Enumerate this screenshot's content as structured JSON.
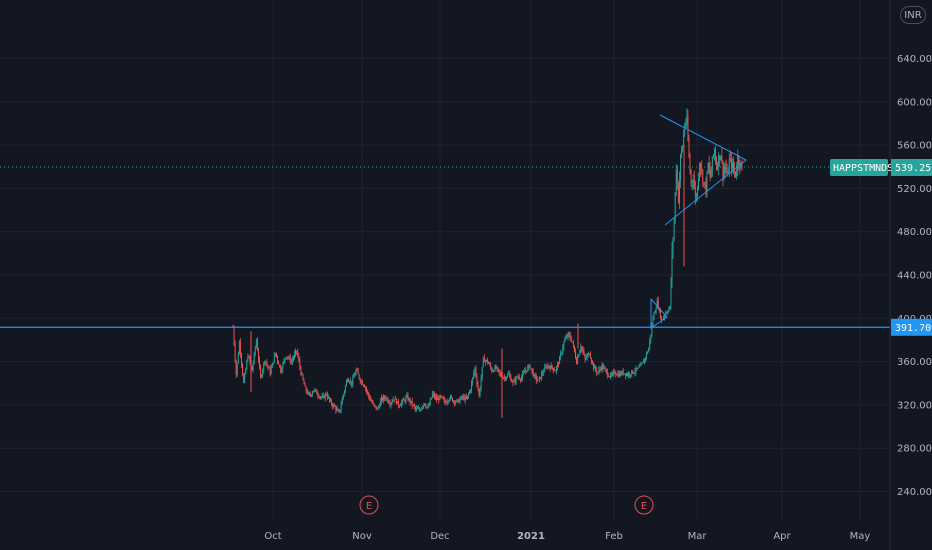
{
  "currency_label": "INR",
  "chart_data": {
    "type": "candlestick",
    "symbol": "HAPPSTMNDS",
    "last_price": "539.25",
    "support_level": "391.70",
    "support_value": 391.7,
    "ylim": [
      220,
      670
    ],
    "y_ticks": [
      "240.00",
      "280.00",
      "320.00",
      "360.00",
      "400.00",
      "440.00",
      "480.00",
      "520.00",
      "560.00",
      "600.00",
      "640.00"
    ],
    "x_labels": [
      "Oct",
      "Nov",
      "Dec",
      "2021",
      "Feb",
      "Mar",
      "Apr",
      "May"
    ],
    "earnings_marker_label": "E",
    "earnings_markers": [
      "Nov",
      "Feb"
    ],
    "price_path": [
      [
        0,
        392
      ],
      [
        3,
        348
      ],
      [
        6,
        378
      ],
      [
        10,
        340
      ],
      [
        14,
        366
      ],
      [
        18,
        352
      ],
      [
        22,
        380
      ],
      [
        26,
        345
      ],
      [
        30,
        362
      ],
      [
        35,
        350
      ],
      [
        40,
        368
      ],
      [
        45,
        352
      ],
      [
        50,
        366
      ],
      [
        55,
        360
      ],
      [
        60,
        370
      ],
      [
        64,
        350
      ],
      [
        68,
        335
      ],
      [
        72,
        328
      ],
      [
        76,
        334
      ],
      [
        80,
        330
      ],
      [
        84,
        326
      ],
      [
        88,
        330
      ],
      [
        92,
        322
      ],
      [
        96,
        318
      ],
      [
        100,
        312
      ],
      [
        104,
        330
      ],
      [
        108,
        345
      ],
      [
        112,
        340
      ],
      [
        116,
        352
      ],
      [
        120,
        343
      ],
      [
        124,
        338
      ],
      [
        128,
        328
      ],
      [
        132,
        320
      ],
      [
        136,
        316
      ],
      [
        140,
        325
      ],
      [
        144,
        327
      ],
      [
        148,
        322
      ],
      [
        152,
        326
      ],
      [
        156,
        320
      ],
      [
        160,
        323
      ],
      [
        164,
        327
      ],
      [
        168,
        322
      ],
      [
        172,
        316
      ],
      [
        176,
        315
      ],
      [
        180,
        322
      ],
      [
        184,
        317
      ],
      [
        188,
        330
      ],
      [
        192,
        325
      ],
      [
        196,
        327
      ],
      [
        200,
        322
      ],
      [
        204,
        327
      ],
      [
        208,
        324
      ],
      [
        212,
        323
      ],
      [
        216,
        327
      ],
      [
        220,
        325
      ],
      [
        224,
        335
      ],
      [
        228,
        354
      ],
      [
        232,
        328
      ],
      [
        236,
        362
      ],
      [
        240,
        360
      ],
      [
        244,
        352
      ],
      [
        248,
        354
      ],
      [
        252,
        348
      ],
      [
        256,
        345
      ],
      [
        260,
        348
      ],
      [
        264,
        340
      ],
      [
        268,
        346
      ],
      [
        272,
        345
      ],
      [
        276,
        352
      ],
      [
        280,
        356
      ],
      [
        284,
        346
      ],
      [
        288,
        342
      ],
      [
        292,
        350
      ],
      [
        296,
        356
      ],
      [
        300,
        355
      ],
      [
        304,
        352
      ],
      [
        308,
        362
      ],
      [
        312,
        378
      ],
      [
        316,
        385
      ],
      [
        320,
        378
      ],
      [
        324,
        360
      ],
      [
        328,
        375
      ],
      [
        332,
        362
      ],
      [
        336,
        368
      ],
      [
        340,
        355
      ],
      [
        344,
        350
      ],
      [
        348,
        356
      ],
      [
        352,
        350
      ],
      [
        356,
        346
      ],
      [
        360,
        350
      ],
      [
        364,
        348
      ],
      [
        368,
        350
      ],
      [
        372,
        348
      ],
      [
        376,
        350
      ],
      [
        380,
        352
      ],
      [
        384,
        355
      ],
      [
        388,
        362
      ],
      [
        392,
        372
      ],
      [
        396,
        400
      ],
      [
        400,
        415
      ],
      [
        404,
        398
      ],
      [
        408,
        405
      ],
      [
        412,
        410
      ],
      [
        414,
        460
      ],
      [
        416,
        490
      ],
      [
        418,
        540
      ],
      [
        420,
        510
      ],
      [
        422,
        548
      ],
      [
        424,
        560
      ],
      [
        426,
        580
      ],
      [
        428,
        582
      ],
      [
        430,
        548
      ],
      [
        432,
        525
      ],
      [
        434,
        532
      ],
      [
        436,
        510
      ],
      [
        438,
        520
      ],
      [
        440,
        546
      ],
      [
        442,
        535
      ],
      [
        444,
        525
      ],
      [
        446,
        520
      ],
      [
        448,
        542
      ],
      [
        450,
        530
      ],
      [
        452,
        545
      ],
      [
        454,
        556
      ],
      [
        456,
        540
      ],
      [
        458,
        548
      ],
      [
        460,
        552
      ],
      [
        462,
        534
      ],
      [
        464,
        540
      ],
      [
        466,
        530
      ],
      [
        468,
        546
      ],
      [
        470,
        542
      ],
      [
        472,
        538
      ],
      [
        474,
        533
      ],
      [
        476,
        548
      ],
      [
        478,
        544
      ],
      [
        480,
        539
      ]
    ]
  }
}
